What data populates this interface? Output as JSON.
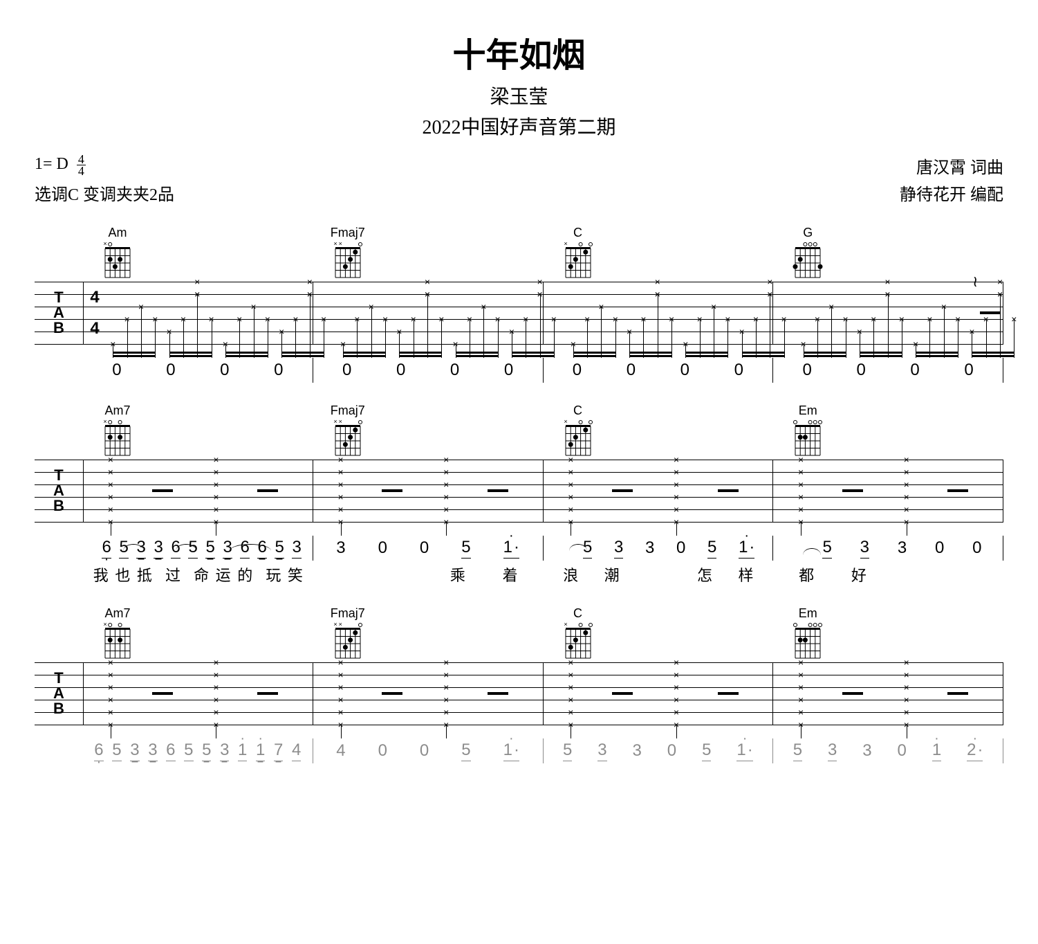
{
  "header": {
    "title": "十年如烟",
    "artist": "梁玉莹",
    "episode": "2022中国好声音第二期"
  },
  "meta": {
    "key_label": "1= D",
    "time_top": "4",
    "time_bot": "4",
    "capo": "选调C 变调夹夹2品",
    "composer": "唐汉霄 词曲",
    "arranger": "静待花开 编配"
  },
  "systems": [
    {
      "chords": [
        "Am",
        "Fmaj7",
        "C",
        "G"
      ],
      "show_timesig": true,
      "pattern": "intro",
      "jianpu": [
        [
          "0",
          "0",
          "0",
          "0"
        ],
        [
          "0",
          "0",
          "0",
          "0"
        ],
        [
          "0",
          "0",
          "0",
          "0"
        ],
        [
          "0",
          "0",
          "0",
          "0"
        ]
      ],
      "lyrics": [
        [],
        [],
        [],
        []
      ]
    },
    {
      "chords": [
        "Am7",
        "Fmaj7",
        "C",
        "Em"
      ],
      "show_timesig": false,
      "pattern": "verse",
      "jianpu_raw": [
        "6 5 3 3 6 5 5 3 6 6 5 3",
        "3 0 0 5 1·",
        "5 3 3 0 5 1·",
        "5 3 3 0 0"
      ],
      "lyrics_raw": [
        "我也抵 过 命运的 玩笑",
        "乘着",
        "浪潮 怎样",
        "都好"
      ]
    },
    {
      "chords": [
        "Am7",
        "Fmaj7",
        "C",
        "Em"
      ],
      "show_timesig": false,
      "pattern": "verse",
      "jianpu_raw_faded": [
        "6 5 3 3 6 5 5 3 1 1 7 4",
        "4 0 0 5 1·",
        "5 3 3 0 5 1·",
        "5 3 3 0 1 2·"
      ]
    }
  ],
  "chord_shapes": {
    "Am": {
      "open": [
        0,
        1,
        0,
        0,
        0,
        0
      ],
      "mute": [
        1,
        0,
        0,
        0,
        0,
        0
      ],
      "dots": [
        [
          2,
          2
        ],
        [
          3,
          3
        ],
        [
          4,
          2
        ]
      ],
      "frets": 4
    },
    "Am7": {
      "open": [
        0,
        1,
        0,
        1,
        0,
        0
      ],
      "mute": [
        1,
        0,
        0,
        0,
        0,
        0
      ],
      "dots": [
        [
          2,
          2
        ],
        [
          4,
          2
        ]
      ],
      "frets": 4
    },
    "Fmaj7": {
      "open": [
        0,
        0,
        0,
        0,
        0,
        1
      ],
      "mute": [
        1,
        1,
        0,
        0,
        0,
        0
      ],
      "dots": [
        [
          3,
          3
        ],
        [
          4,
          2
        ],
        [
          5,
          1
        ]
      ],
      "frets": 4
    },
    "C": {
      "open": [
        0,
        0,
        0,
        1,
        0,
        1
      ],
      "mute": [
        1,
        0,
        0,
        0,
        0,
        0
      ],
      "dots": [
        [
          2,
          3
        ],
        [
          3,
          2
        ],
        [
          5,
          1
        ]
      ],
      "frets": 4
    },
    "G": {
      "open": [
        0,
        0,
        1,
        1,
        1,
        0
      ],
      "mute": [
        0,
        0,
        0,
        0,
        0,
        0
      ],
      "dots": [
        [
          1,
          3
        ],
        [
          2,
          2
        ],
        [
          6,
          3
        ]
      ],
      "frets": 4
    },
    "Em": {
      "open": [
        1,
        0,
        0,
        1,
        1,
        1
      ],
      "mute": [
        0,
        0,
        0,
        0,
        0,
        0
      ],
      "dots": [
        [
          2,
          2
        ],
        [
          3,
          2
        ]
      ],
      "frets": 4
    }
  },
  "colors": {
    "fg": "#000000",
    "bg": "#ffffff"
  },
  "tab_geometry": {
    "height": 90,
    "lines": 6
  }
}
